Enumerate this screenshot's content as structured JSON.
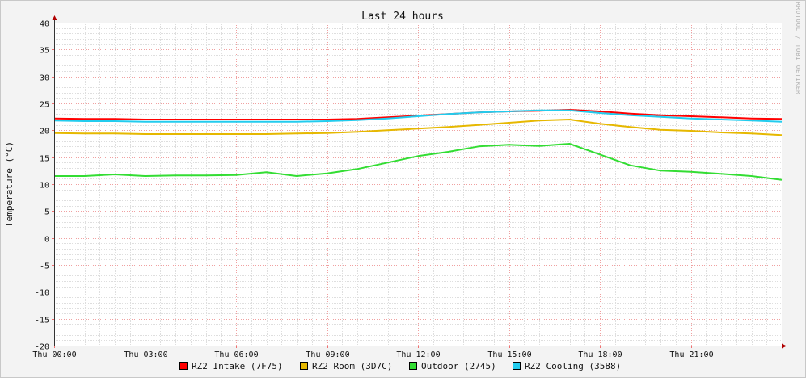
{
  "chart_data": {
    "type": "line",
    "title": "Last 24 hours",
    "xlabel": "",
    "ylabel": "Temperature (°C)",
    "ylim": [
      -20,
      40
    ],
    "xlim": [
      0,
      24
    ],
    "grid": true,
    "legend_position": "bottom",
    "watermark": "RRDTOOL / TOBI OETIKER",
    "x_ticks": [
      {
        "hour": 0,
        "label": "Thu 00:00"
      },
      {
        "hour": 3,
        "label": "Thu 03:00"
      },
      {
        "hour": 6,
        "label": "Thu 06:00"
      },
      {
        "hour": 9,
        "label": "Thu 09:00"
      },
      {
        "hour": 12,
        "label": "Thu 12:00"
      },
      {
        "hour": 15,
        "label": "Thu 15:00"
      },
      {
        "hour": 18,
        "label": "Thu 18:00"
      },
      {
        "hour": 21,
        "label": "Thu 21:00"
      }
    ],
    "y_ticks": [
      -20,
      -15,
      -10,
      -5,
      0,
      5,
      10,
      15,
      20,
      25,
      30,
      35,
      40
    ],
    "x": [
      0,
      1,
      2,
      3,
      4,
      5,
      6,
      7,
      8,
      9,
      10,
      11,
      12,
      13,
      14,
      15,
      16,
      17,
      18,
      19,
      20,
      21,
      22,
      23,
      24
    ],
    "series": [
      {
        "name": "RZ2 Intake (7F75)",
        "color": "#ff0000",
        "values": [
          22.2,
          22.1,
          22.1,
          22.0,
          22.0,
          22.0,
          22.0,
          22.0,
          22.0,
          22.0,
          22.1,
          22.4,
          22.7,
          23.0,
          23.3,
          23.5,
          23.6,
          23.8,
          23.5,
          23.1,
          22.8,
          22.6,
          22.4,
          22.2,
          22.1
        ]
      },
      {
        "name": "RZ2 Room (3D7C)",
        "color": "#e6b800",
        "values": [
          19.5,
          19.4,
          19.4,
          19.3,
          19.3,
          19.3,
          19.3,
          19.3,
          19.4,
          19.5,
          19.7,
          20.0,
          20.3,
          20.6,
          21.0,
          21.4,
          21.8,
          22.0,
          21.2,
          20.6,
          20.1,
          19.9,
          19.6,
          19.4,
          19.1
        ]
      },
      {
        "name": "Outdoor (2745)",
        "color": "#33dd33",
        "values": [
          11.5,
          11.5,
          11.8,
          11.5,
          11.6,
          11.6,
          11.7,
          12.2,
          11.5,
          12.0,
          12.8,
          14.0,
          15.2,
          16.0,
          17.0,
          17.3,
          17.1,
          17.5,
          15.5,
          13.5,
          12.5,
          12.3,
          11.9,
          11.5,
          10.8
        ]
      },
      {
        "name": "RZ2 Cooling (3588)",
        "color": "#22ccee",
        "values": [
          21.8,
          21.7,
          21.7,
          21.6,
          21.6,
          21.6,
          21.6,
          21.6,
          21.6,
          21.7,
          21.9,
          22.2,
          22.6,
          23.0,
          23.3,
          23.5,
          23.7,
          23.7,
          23.2,
          22.8,
          22.5,
          22.2,
          22.0,
          21.8,
          21.6
        ]
      }
    ]
  }
}
